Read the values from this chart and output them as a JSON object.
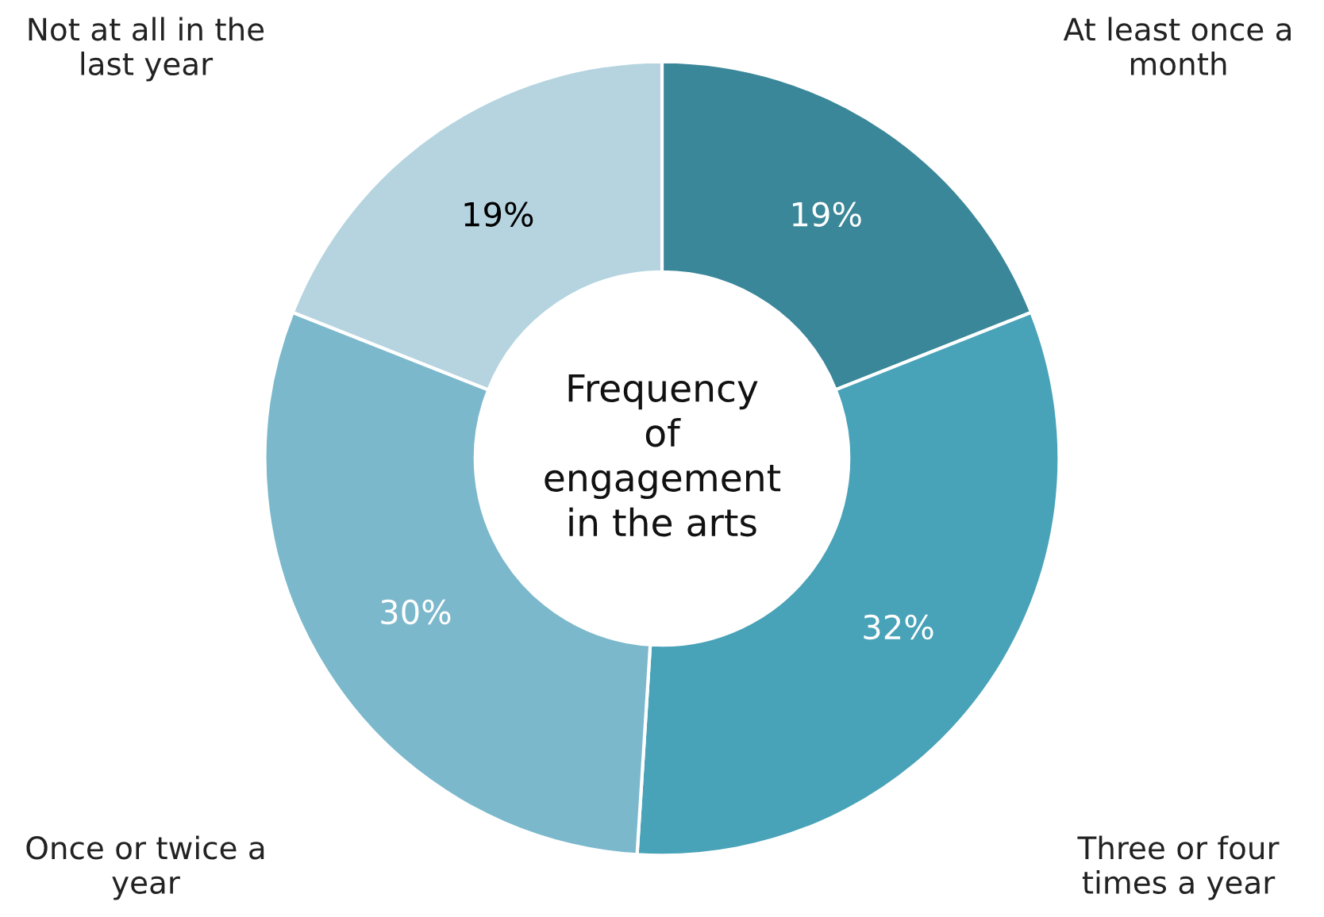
{
  "chart_data": {
    "type": "donut",
    "title": "Frequency of engagement in the arts",
    "categories": [
      "At least once a month",
      "Three or four times a year",
      "Once or twice a year",
      "Not at all in the last year"
    ],
    "values": [
      19,
      32,
      30,
      19
    ],
    "colors": [
      "#3a8799",
      "#48a2b8",
      "#7cb8cc",
      "#b5d4e0"
    ],
    "value_labels": [
      "19%",
      "32%",
      "30%",
      "19%"
    ],
    "legend": false
  }
}
